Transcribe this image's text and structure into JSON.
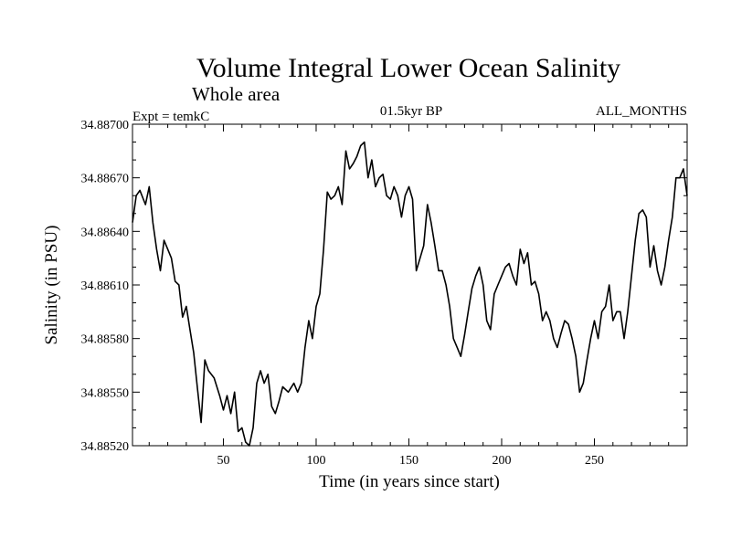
{
  "chart_data": {
    "type": "line",
    "title": "Volume Integral Lower Ocean Salinity",
    "subtitle": "Whole area",
    "experiment_label": "Expt = temkC",
    "period_label": "01.5kyr BP",
    "months_label": "ALL_MONTHS",
    "xlabel": "Time (in years since start)",
    "ylabel": "Salinity (in PSU)",
    "xlim": [
      1,
      300
    ],
    "ylim": [
      34.8852,
      34.887
    ],
    "x_ticks": [
      50,
      100,
      150,
      200,
      250
    ],
    "x_tick_labels": [
      "50",
      "100",
      "150",
      "200",
      "250"
    ],
    "y_ticks": [
      34.8852,
      34.8855,
      34.8858,
      34.8861,
      34.8864,
      34.8867,
      34.887
    ],
    "y_tick_labels": [
      "34.88520",
      "34.88550",
      "34.88580",
      "34.88610",
      "34.88640",
      "34.88670",
      "34.88700"
    ],
    "grid": false,
    "series": [
      {
        "name": "Salinity",
        "color": "#000000",
        "x": [
          1,
          3,
          5,
          8,
          10,
          12,
          14,
          16,
          18,
          20,
          22,
          24,
          26,
          28,
          30,
          32,
          34,
          36,
          38,
          40,
          42,
          45,
          48,
          50,
          52,
          54,
          56,
          58,
          60,
          62,
          64,
          66,
          68,
          70,
          72,
          74,
          76,
          78,
          80,
          82,
          85,
          88,
          90,
          92,
          94,
          96,
          98,
          100,
          102,
          104,
          106,
          108,
          110,
          112,
          114,
          116,
          118,
          120,
          122,
          124,
          126,
          128,
          130,
          132,
          134,
          136,
          138,
          140,
          142,
          144,
          146,
          148,
          150,
          152,
          154,
          156,
          158,
          160,
          162,
          164,
          166,
          168,
          170,
          172,
          174,
          176,
          178,
          180,
          182,
          184,
          186,
          188,
          190,
          192,
          194,
          196,
          198,
          200,
          202,
          204,
          206,
          208,
          210,
          212,
          214,
          216,
          218,
          220,
          222,
          224,
          226,
          228,
          230,
          232,
          234,
          236,
          238,
          240,
          242,
          244,
          246,
          248,
          250,
          252,
          254,
          256,
          258,
          260,
          262,
          264,
          266,
          268,
          270,
          272,
          274,
          276,
          278,
          280,
          282,
          284,
          286,
          288,
          290,
          292,
          294,
          296,
          298,
          300
        ],
        "values": [
          34.88645,
          34.8866,
          34.88663,
          34.88655,
          34.88665,
          34.88645,
          34.8863,
          34.88618,
          34.88635,
          34.8863,
          34.88625,
          34.88612,
          34.8861,
          34.88592,
          34.88598,
          34.88585,
          34.88572,
          34.88552,
          34.88533,
          34.88568,
          34.88562,
          34.88558,
          34.88548,
          34.8854,
          34.88548,
          34.88538,
          34.8855,
          34.88528,
          34.8853,
          34.88522,
          34.8852,
          34.8853,
          34.88555,
          34.88562,
          34.88555,
          34.8856,
          34.88542,
          34.88538,
          34.88545,
          34.88553,
          34.8855,
          34.88555,
          34.8855,
          34.88555,
          34.88575,
          34.8859,
          34.8858,
          34.88598,
          34.88605,
          34.8863,
          34.88662,
          34.88658,
          34.8866,
          34.88665,
          34.88655,
          34.88685,
          34.88675,
          34.88678,
          34.88682,
          34.88688,
          34.8869,
          34.8867,
          34.8868,
          34.88665,
          34.8867,
          34.88672,
          34.8866,
          34.88658,
          34.88665,
          34.8866,
          34.88648,
          34.8866,
          34.88665,
          34.88658,
          34.88618,
          34.88625,
          34.88632,
          34.88655,
          34.88645,
          34.88632,
          34.88618,
          34.88618,
          34.8861,
          34.88598,
          34.8858,
          34.88575,
          34.8857,
          34.88582,
          34.88595,
          34.88608,
          34.88615,
          34.8862,
          34.8861,
          34.8859,
          34.88585,
          34.88605,
          34.8861,
          34.88615,
          34.8862,
          34.88622,
          34.88615,
          34.8861,
          34.8863,
          34.88622,
          34.88628,
          34.8861,
          34.88612,
          34.88605,
          34.8859,
          34.88595,
          34.8859,
          34.8858,
          34.88575,
          34.88583,
          34.8859,
          34.88588,
          34.8858,
          34.8857,
          34.8855,
          34.88555,
          34.88568,
          34.8858,
          34.8859,
          34.8858,
          34.88595,
          34.88598,
          34.8861,
          34.8859,
          34.88595,
          34.88595,
          34.8858,
          34.88595,
          34.88615,
          34.88635,
          34.8865,
          34.88652,
          34.88648,
          34.8862,
          34.88632,
          34.88618,
          34.8861,
          34.8862,
          34.88635,
          34.88648,
          34.8867,
          34.8867,
          34.88675,
          34.8866
        ]
      }
    ]
  }
}
